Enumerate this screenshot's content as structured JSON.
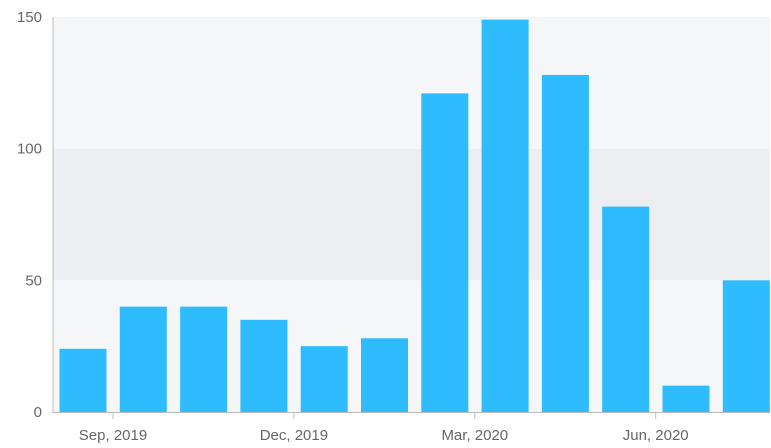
{
  "chart_data": {
    "type": "bar",
    "categories": [
      "2019-09",
      "2019-10",
      "2019-11",
      "2019-12",
      "2020-01",
      "2020-02",
      "2020-03",
      "2020-04",
      "2020-05",
      "2020-06",
      "2020-07",
      "2020-08"
    ],
    "values": [
      24,
      40,
      40,
      35,
      25,
      28,
      121,
      149,
      128,
      78,
      10,
      50
    ],
    "y_ticks": [
      "0",
      "50",
      "100",
      "150"
    ],
    "x_tick_labels": [
      {
        "month": "2019-09",
        "label": "Sep, 2019"
      },
      {
        "month": "2019-12",
        "label": "Dec, 2019"
      },
      {
        "month": "2020-03",
        "label": "Mar, 2020"
      },
      {
        "month": "2020-06",
        "label": "Jun, 2020"
      }
    ],
    "ylim": [
      0,
      150
    ],
    "title": "",
    "xlabel": "",
    "ylabel": "",
    "grid": true,
    "legend": "none"
  },
  "colors": {
    "bar": "#2ebcfe",
    "band_light": "#f5f6f8",
    "band_dark": "#eceef1",
    "axis": "#bbbbbb",
    "text": "#666666"
  }
}
